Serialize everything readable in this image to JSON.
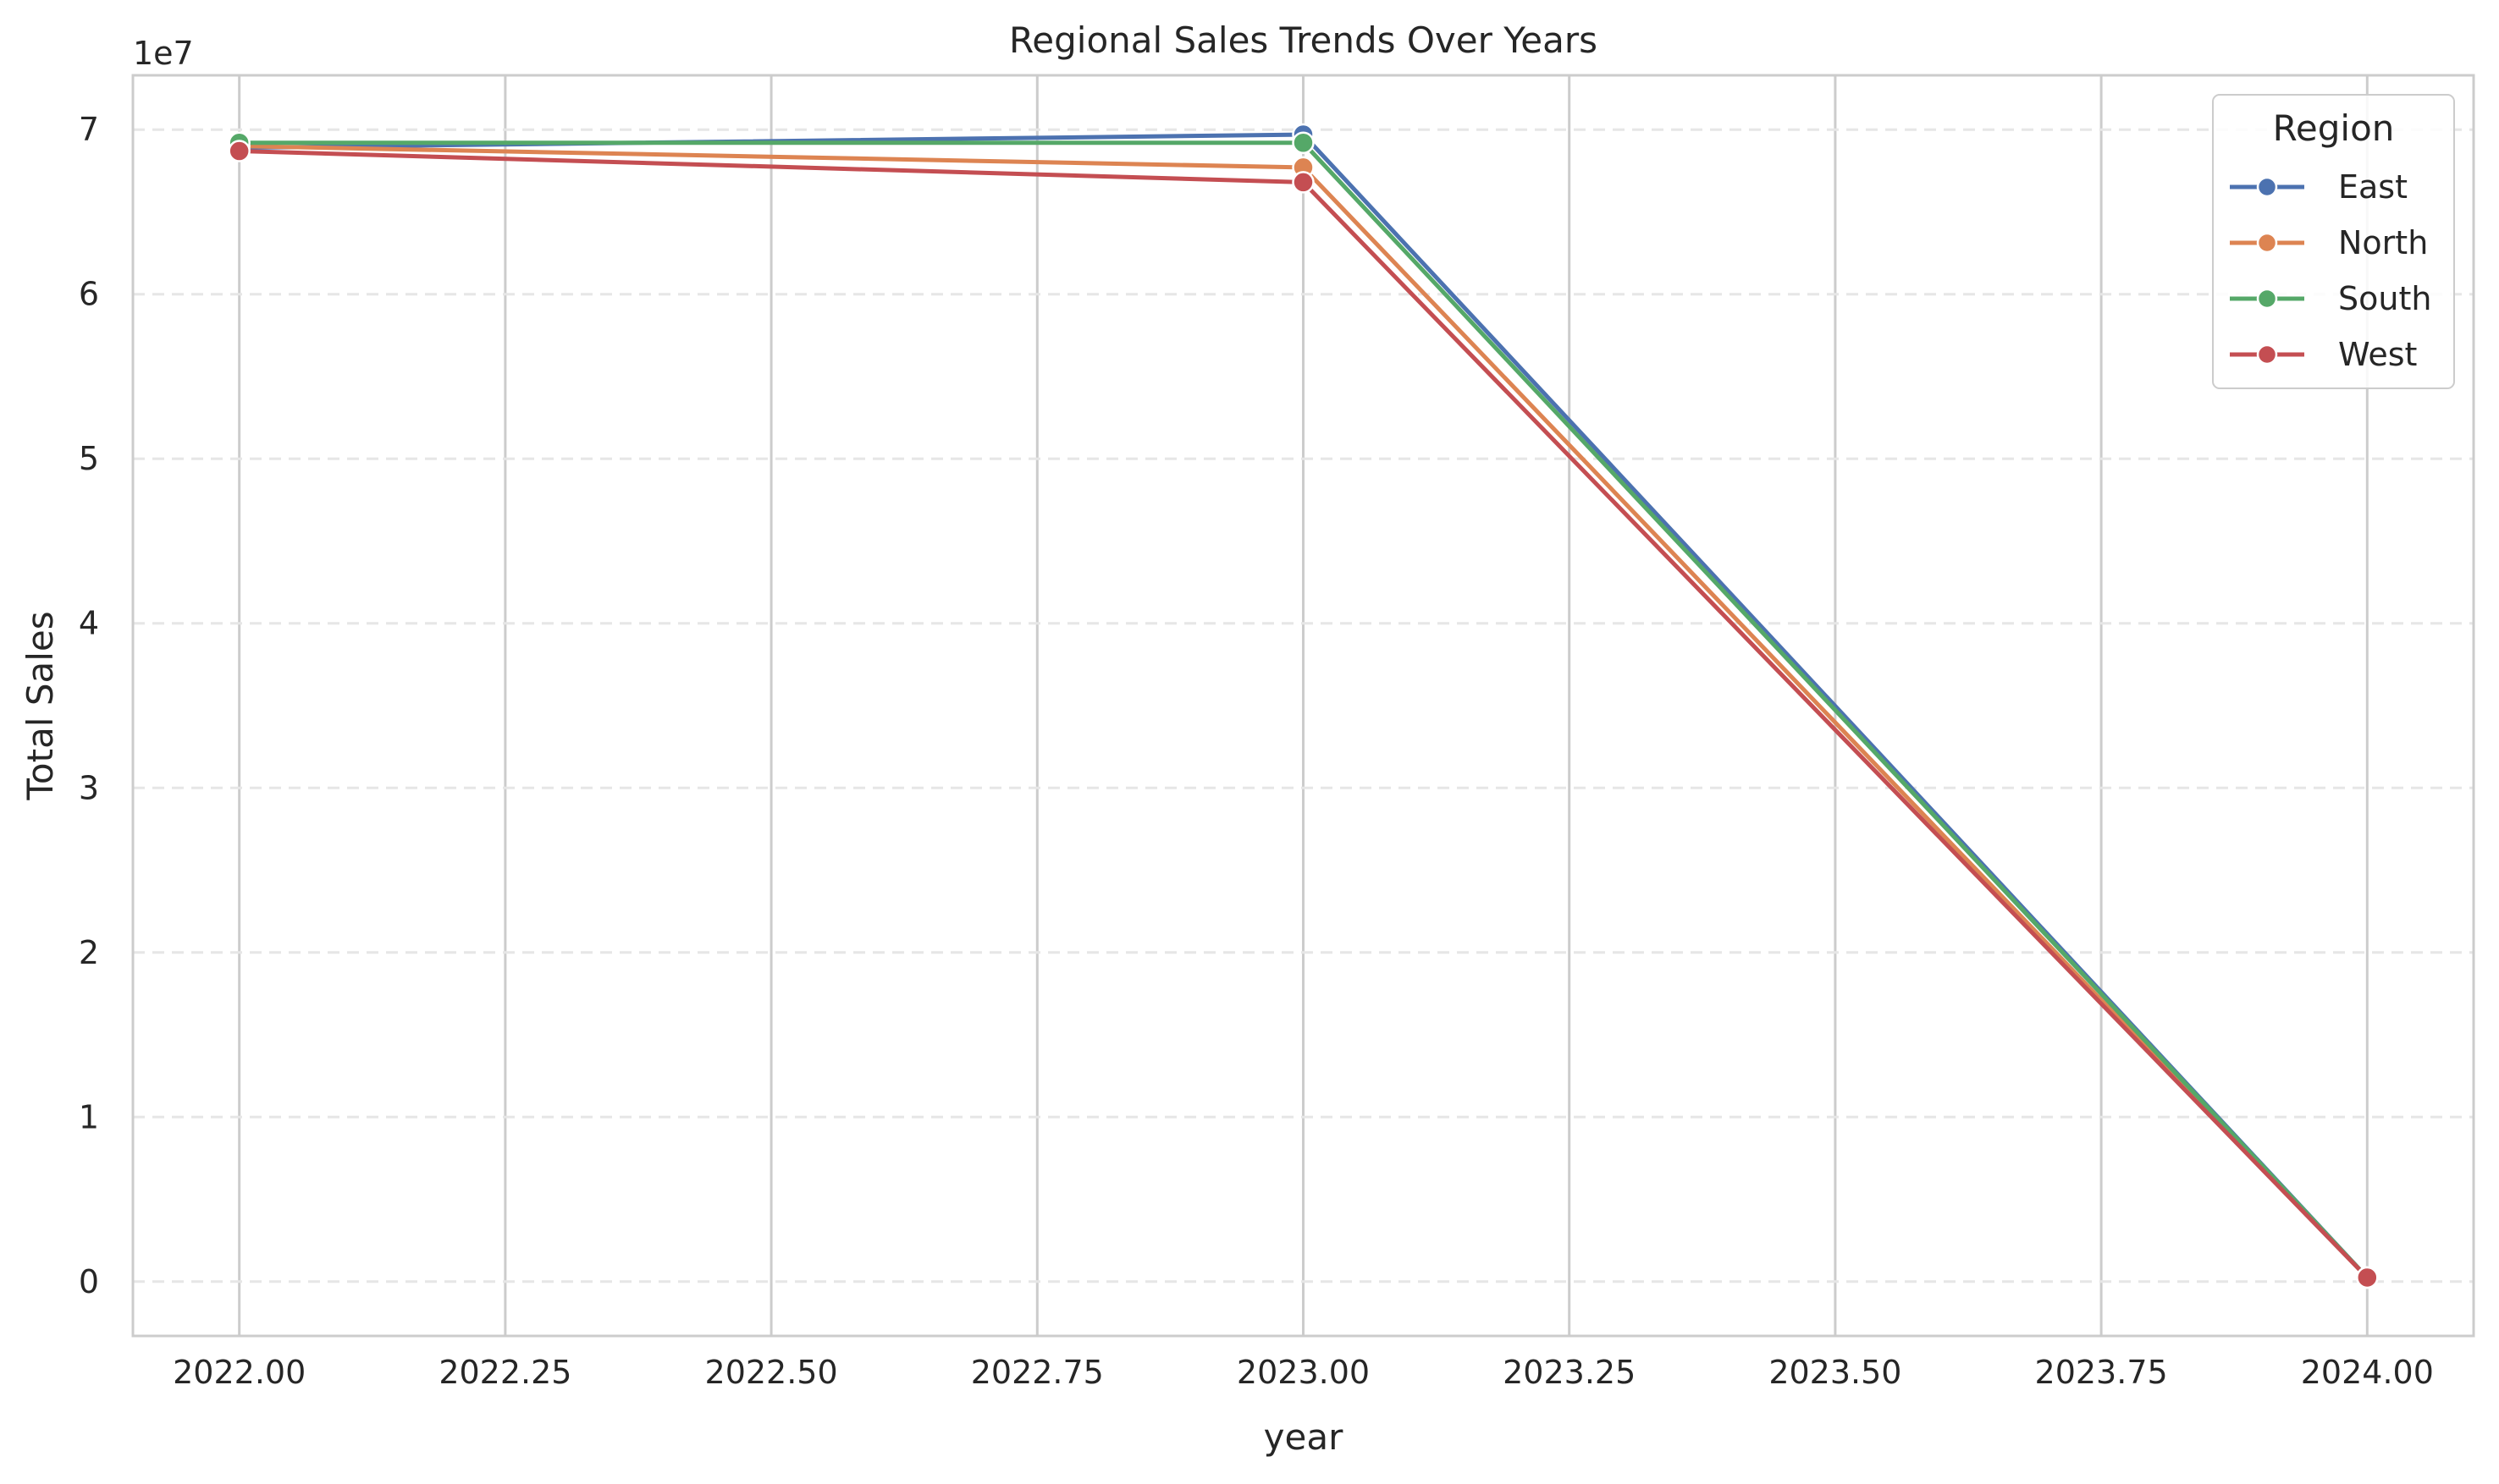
{
  "chart_data": {
    "type": "line",
    "title": "Regional Sales Trends Over Years",
    "xlabel": "year",
    "ylabel": "Total Sales",
    "y_offset_text": "1e7",
    "x": [
      2022.0,
      2023.0,
      2024.0
    ],
    "xlim": [
      2021.9,
      2024.1
    ],
    "ylim": [
      -3300000,
      73300000
    ],
    "x_ticks": [
      2022.0,
      2022.25,
      2022.5,
      2022.75,
      2023.0,
      2023.25,
      2023.5,
      2023.75,
      2024.0
    ],
    "x_tick_labels": [
      "2022.00",
      "2022.25",
      "2022.50",
      "2022.75",
      "2023.00",
      "2023.25",
      "2023.50",
      "2023.75",
      "2024.00"
    ],
    "y_ticks": [
      0,
      10000000,
      20000000,
      30000000,
      40000000,
      50000000,
      60000000,
      70000000
    ],
    "y_tick_labels": [
      "0",
      "1",
      "2",
      "3",
      "4",
      "5",
      "6",
      "7"
    ],
    "grid": {
      "x": "solid",
      "y": "dashed"
    },
    "legend": {
      "title": "Region",
      "placement": "top-right"
    },
    "series": [
      {
        "name": "East",
        "color": "#4c72b0",
        "values": [
          68900000,
          69700000,
          250000
        ]
      },
      {
        "name": "North",
        "color": "#dd8452",
        "values": [
          69000000,
          67700000,
          250000
        ]
      },
      {
        "name": "South",
        "color": "#55a868",
        "values": [
          69200000,
          69200000,
          250000
        ]
      },
      {
        "name": "West",
        "color": "#c44e52",
        "values": [
          68700000,
          66800000,
          250000
        ]
      }
    ]
  }
}
